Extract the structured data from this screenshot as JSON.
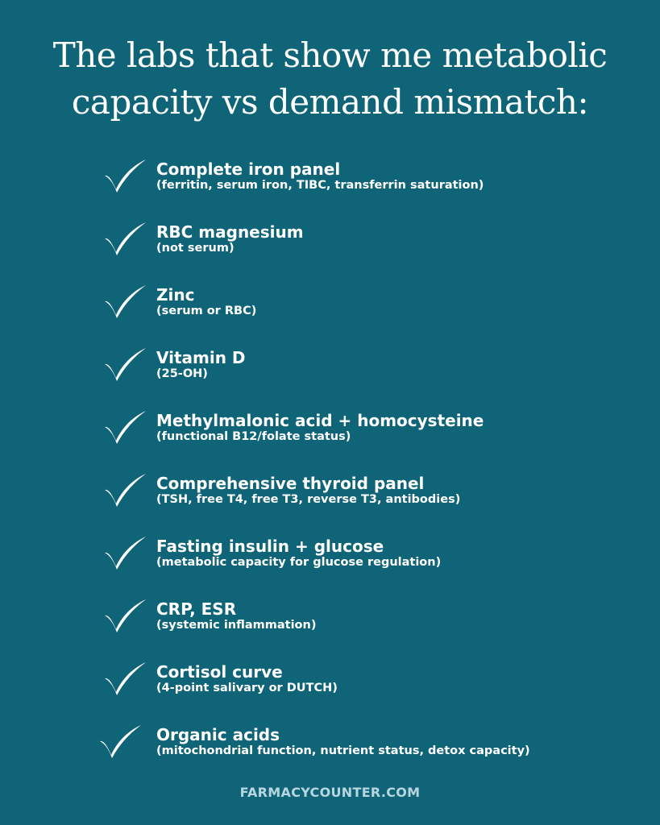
{
  "title": {
    "line1": "The labs that show me metabolic",
    "line2": "capacity vs demand mismatch:"
  },
  "checklist": [
    {
      "title": "Complete iron panel",
      "subtitle": "(ferritin, serum iron, TIBC, transferrin saturation)"
    },
    {
      "title": "RBC magnesium",
      "subtitle": "(not serum)"
    },
    {
      "title": "Zinc",
      "subtitle": "(serum or RBC)"
    },
    {
      "title": "Vitamin D",
      "subtitle": "(25-OH)"
    },
    {
      "title": "Methylmalonic acid + homocysteine",
      "subtitle": "(functional B12/folate status)"
    },
    {
      "title": "Comprehensive thyroid panel",
      "subtitle": "(TSH, free T4, free T3, reverse T3, antibodies)"
    },
    {
      "title": "Fasting insulin + glucose",
      "subtitle": "(metabolic capacity for glucose regulation)"
    },
    {
      "title": "CRP, ESR",
      "subtitle": "(systemic inflammation)"
    },
    {
      "title": "Cortisol curve",
      "subtitle": "(4-point salivary or DUTCH)"
    },
    {
      "title": "Organic acids",
      "subtitle": "(mitochondrial function, nutrient status, detox capacity)"
    }
  ],
  "footer": {
    "url": "FARMACYCOUNTER.COM"
  },
  "colors": {
    "background": "#0f6478",
    "text": "#ffffff",
    "footer_text": "#b8d6e0"
  },
  "icons": {
    "check": "checkmark-icon"
  }
}
